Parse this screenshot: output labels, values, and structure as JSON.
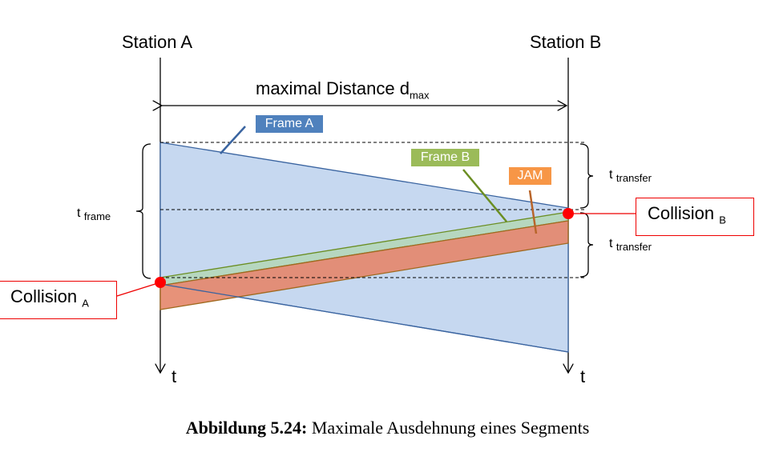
{
  "stations": {
    "a": "Station A",
    "b": "Station B"
  },
  "distance": {
    "label": "maximal Distance d",
    "sub": "max"
  },
  "frames": {
    "a": "Frame A",
    "b": "Frame B",
    "jam": "JAM"
  },
  "colors": {
    "frame_a": "#4f81bd",
    "frame_b": "#9bbb59",
    "jam": "#f79646",
    "collision": "#ff0000"
  },
  "times": {
    "t": "t",
    "frame_sub": "frame",
    "transfer_sub": "transfer"
  },
  "collisions": {
    "label": "Collision",
    "a_sub": "A",
    "b_sub": "B"
  },
  "caption": {
    "bold": "Abbildung 5.24:",
    "text": " Maximale Ausdehnung eines Segments"
  }
}
